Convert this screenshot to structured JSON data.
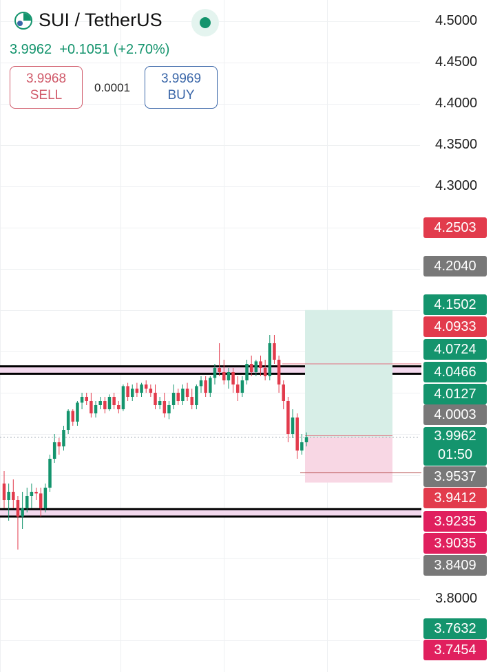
{
  "header": {
    "symbol": "SUI / TetherUS",
    "last_price": "3.9962",
    "change": "+0.1051",
    "change_pct": "(+2.70%)",
    "sell_price": "3.9968",
    "sell_label": "SELL",
    "spread": "0.0001",
    "buy_price": "3.9969",
    "buy_label": "BUY",
    "live_indicator": "green-dot-icon",
    "logo": "tradingview-logo-icon"
  },
  "colors": {
    "up": "#14946d",
    "down": "#e23b4c",
    "gray_tag": "#787878",
    "pink_tag": "#e0205e",
    "zone_fill": "#f3d9ee",
    "profit_zone": "#d7eee7",
    "loss_zone": "#f8d7e4",
    "grid": "#eef0f2"
  },
  "price_axis": {
    "ticks": [
      "4.5000",
      "4.4500",
      "4.4000",
      "4.3500",
      "4.3000",
      "3.8000"
    ],
    "tags": [
      {
        "value": "4.2503",
        "color": "#e23b4c"
      },
      {
        "value": "4.2040",
        "color": "#787878"
      },
      {
        "value": "4.1502",
        "color": "#14946d"
      },
      {
        "value": "4.0933",
        "color": "#e23b4c"
      },
      {
        "value": "4.0724",
        "color": "#14946d"
      },
      {
        "value": "4.0466",
        "color": "#14946d"
      },
      {
        "value": "4.0127",
        "color": "#14946d"
      },
      {
        "value": "4.0003",
        "color": "#787878"
      },
      {
        "value": "3.9962",
        "sub": "01:50",
        "color": "#14946d"
      },
      {
        "value": "3.9537",
        "color": "#787878"
      },
      {
        "value": "3.9412",
        "color": "#e23b4c"
      },
      {
        "value": "3.9235",
        "color": "#e0205e"
      },
      {
        "value": "3.9035",
        "color": "#e0205e"
      },
      {
        "value": "3.8409",
        "color": "#787878"
      },
      {
        "value": "3.7632",
        "color": "#14946d"
      },
      {
        "value": "3.7454",
        "color": "#e0205e"
      }
    ]
  },
  "chart_data": {
    "type": "candlestick",
    "current_price": 3.9962,
    "resistance_zone": [
      4.073,
      4.082
    ],
    "support_zone": [
      3.9,
      3.909
    ],
    "position": {
      "entry": 3.9962,
      "target": 4.1502,
      "stop": 3.9412
    },
    "ohlc": [
      [
        3.94,
        3.955,
        3.91,
        3.92
      ],
      [
        3.92,
        3.94,
        3.895,
        3.93
      ],
      [
        3.93,
        3.945,
        3.91,
        3.92
      ],
      [
        3.92,
        3.925,
        3.86,
        3.9
      ],
      [
        3.9,
        3.93,
        3.885,
        3.91
      ],
      [
        3.91,
        3.935,
        3.905,
        3.925
      ],
      [
        3.925,
        3.94,
        3.91,
        3.93
      ],
      [
        3.93,
        3.935,
        3.92,
        3.928
      ],
      [
        3.928,
        3.935,
        3.9,
        3.91
      ],
      [
        3.91,
        3.94,
        3.905,
        3.935
      ],
      [
        3.935,
        3.975,
        3.93,
        3.97
      ],
      [
        3.97,
        4.0,
        3.965,
        3.99
      ],
      [
        3.99,
        3.995,
        3.975,
        3.985
      ],
      [
        3.985,
        4.01,
        3.98,
        4.005
      ],
      [
        4.005,
        4.03,
        4.0,
        4.028
      ],
      [
        4.028,
        4.03,
        4.01,
        4.015
      ],
      [
        4.015,
        4.04,
        4.01,
        4.038
      ],
      [
        4.038,
        4.05,
        4.03,
        4.045
      ],
      [
        4.045,
        4.05,
        4.035,
        4.04
      ],
      [
        4.04,
        4.05,
        4.02,
        4.025
      ],
      [
        4.025,
        4.04,
        4.02,
        4.035
      ],
      [
        4.035,
        4.045,
        4.03,
        4.04
      ],
      [
        4.04,
        4.045,
        4.025,
        4.03
      ],
      [
        4.03,
        4.048,
        4.028,
        4.045
      ],
      [
        4.045,
        4.05,
        4.03,
        4.035
      ],
      [
        4.035,
        4.04,
        4.025,
        4.03
      ],
      [
        4.03,
        4.06,
        4.028,
        4.058
      ],
      [
        4.058,
        4.062,
        4.04,
        4.045
      ],
      [
        4.045,
        4.06,
        4.04,
        4.055
      ],
      [
        4.055,
        4.062,
        4.045,
        4.05
      ],
      [
        4.05,
        4.062,
        4.045,
        4.06
      ],
      [
        4.06,
        4.065,
        4.05,
        4.055
      ],
      [
        4.055,
        4.06,
        4.045,
        4.05
      ],
      [
        4.05,
        4.06,
        4.03,
        4.035
      ],
      [
        4.035,
        4.045,
        4.03,
        4.04
      ],
      [
        4.04,
        4.05,
        4.02,
        4.025
      ],
      [
        4.025,
        4.04,
        4.018,
        4.035
      ],
      [
        4.035,
        4.06,
        4.03,
        4.05
      ],
      [
        4.05,
        4.055,
        4.035,
        4.04
      ],
      [
        4.04,
        4.06,
        4.035,
        4.055
      ],
      [
        4.055,
        4.062,
        4.04,
        4.045
      ],
      [
        4.045,
        4.055,
        4.03,
        4.035
      ],
      [
        4.035,
        4.06,
        4.03,
        4.058
      ],
      [
        4.058,
        4.07,
        4.05,
        4.065
      ],
      [
        4.065,
        4.07,
        4.045,
        4.05
      ],
      [
        4.05,
        4.07,
        4.045,
        4.068
      ],
      [
        4.068,
        4.085,
        4.06,
        4.08
      ],
      [
        4.08,
        4.11,
        4.07,
        4.075
      ],
      [
        4.075,
        4.09,
        4.06,
        4.065
      ],
      [
        4.065,
        4.08,
        4.055,
        4.075
      ],
      [
        4.075,
        4.08,
        4.05,
        4.06
      ],
      [
        4.06,
        4.07,
        4.04,
        4.05
      ],
      [
        4.05,
        4.07,
        4.045,
        4.065
      ],
      [
        4.065,
        4.09,
        4.06,
        4.085
      ],
      [
        4.085,
        4.095,
        4.07,
        4.075
      ],
      [
        4.075,
        4.09,
        4.07,
        4.088
      ],
      [
        4.088,
        4.095,
        4.07,
        4.08
      ],
      [
        4.08,
        4.09,
        4.065,
        4.07
      ],
      [
        4.07,
        4.12,
        4.065,
        4.11
      ],
      [
        4.11,
        4.12,
        4.085,
        4.09
      ],
      [
        4.09,
        4.095,
        4.05,
        4.06
      ],
      [
        4.06,
        4.065,
        4.03,
        4.04
      ],
      [
        4.04,
        4.045,
        3.99,
        4.0
      ],
      [
        4.0,
        4.03,
        3.995,
        4.02
      ],
      [
        4.02,
        4.025,
        3.97,
        3.98
      ],
      [
        3.98,
        4.0,
        3.975,
        3.99
      ],
      [
        3.99,
        4.002,
        3.985,
        3.9962
      ]
    ]
  }
}
